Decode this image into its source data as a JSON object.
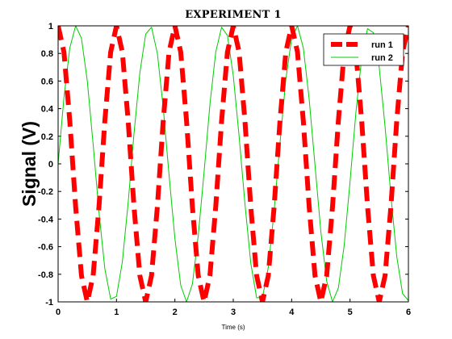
{
  "chart_data": {
    "type": "line",
    "title": "EXPERIMENT 1",
    "xlabel": "Time (s)",
    "ylabel": "Signal (V)",
    "xlim": [
      0,
      6
    ],
    "ylim": [
      -1,
      1
    ],
    "grid": false,
    "legend_position": "top-right",
    "x_ticks": [
      0,
      1,
      2,
      3,
      4,
      5,
      6
    ],
    "x_tick_labels": [
      "0",
      "1",
      "2",
      "3",
      "4",
      "5",
      "6"
    ],
    "y_ticks": [
      1,
      0.8,
      0.6,
      0.4,
      0.2,
      0,
      -0.2,
      -0.4,
      -0.6,
      -0.8,
      -1
    ],
    "y_tick_labels": [
      "1",
      "0.8",
      "0.6",
      "0.4",
      "0.2",
      "0",
      "-0.2",
      "-0.4",
      "-0.6",
      "-0.8",
      "-1"
    ],
    "series": [
      {
        "name": "run 1",
        "style": "dashed",
        "color": "#ff0000",
        "x": [
          0,
          0.1,
          0.2,
          0.3,
          0.4,
          0.5,
          0.6,
          0.7,
          0.8,
          0.9,
          1.0,
          1.1,
          1.2,
          1.3,
          1.4,
          1.5,
          1.6,
          1.7,
          1.8,
          1.9,
          2.0,
          2.1,
          2.2,
          2.3,
          2.4,
          2.5,
          2.6,
          2.7,
          2.8,
          2.9,
          3.0,
          3.1,
          3.2,
          3.3,
          3.4,
          3.5,
          3.6,
          3.7,
          3.8,
          3.9,
          4.0,
          4.1,
          4.2,
          4.3,
          4.4,
          4.5,
          4.6,
          4.7,
          4.8,
          4.9,
          5.0,
          5.1,
          5.2,
          5.3,
          5.4,
          5.5,
          5.6,
          5.7,
          5.8,
          5.9,
          6.0
        ],
        "y": [
          1.0,
          0.81,
          0.31,
          -0.31,
          -0.81,
          -1.0,
          -0.81,
          -0.31,
          0.31,
          0.81,
          1.0,
          0.81,
          0.31,
          -0.31,
          -0.81,
          -1.0,
          -0.81,
          -0.31,
          0.31,
          0.81,
          1.0,
          0.81,
          0.31,
          -0.31,
          -0.81,
          -1.0,
          -0.81,
          -0.31,
          0.31,
          0.81,
          1.0,
          0.81,
          0.31,
          -0.31,
          -0.81,
          -1.0,
          -0.81,
          -0.31,
          0.31,
          0.81,
          1.0,
          0.81,
          0.31,
          -0.31,
          -0.81,
          -1.0,
          -0.81,
          -0.31,
          0.31,
          0.81,
          1.0,
          0.81,
          0.31,
          -0.31,
          -0.81,
          -1.0,
          -0.81,
          -0.31,
          0.31,
          0.81,
          1.0
        ]
      },
      {
        "name": "run 2",
        "style": "solid",
        "color": "#00cc00",
        "x": [
          0,
          0.1,
          0.2,
          0.3,
          0.4,
          0.5,
          0.6,
          0.7,
          0.8,
          0.9,
          1.0,
          1.1,
          1.2,
          1.3,
          1.4,
          1.5,
          1.6,
          1.7,
          1.8,
          1.9,
          2.0,
          2.1,
          2.2,
          2.3,
          2.4,
          2.5,
          2.6,
          2.7,
          2.8,
          2.9,
          3.0,
          3.1,
          3.2,
          3.3,
          3.4,
          3.5,
          3.6,
          3.7,
          3.8,
          3.9,
          4.0,
          4.1,
          4.2,
          4.3,
          4.4,
          4.5,
          4.6,
          4.7,
          4.8,
          4.9,
          5.0,
          5.1,
          5.2,
          5.3,
          5.4,
          5.5,
          5.6,
          5.7,
          5.8,
          5.9,
          6.0
        ],
        "y": [
          0.0,
          0.48,
          0.84,
          1.0,
          0.91,
          0.6,
          0.14,
          -0.35,
          -0.76,
          -0.98,
          -0.96,
          -0.71,
          -0.28,
          0.22,
          0.66,
          0.94,
          0.99,
          0.8,
          0.41,
          -0.08,
          -0.54,
          -0.88,
          -1.0,
          -0.87,
          -0.52,
          -0.06,
          0.43,
          0.81,
          0.99,
          0.93,
          0.64,
          0.2,
          -0.29,
          -0.72,
          -0.97,
          -0.97,
          -0.75,
          -0.34,
          0.15,
          0.61,
          0.91,
          1.0,
          0.84,
          0.47,
          -0.01,
          -0.49,
          -0.85,
          -1.0,
          -0.9,
          -0.59,
          -0.13,
          0.37,
          0.77,
          0.98,
          0.95,
          0.7,
          0.27,
          -0.23,
          -0.67,
          -0.94,
          -0.99
        ]
      }
    ]
  }
}
